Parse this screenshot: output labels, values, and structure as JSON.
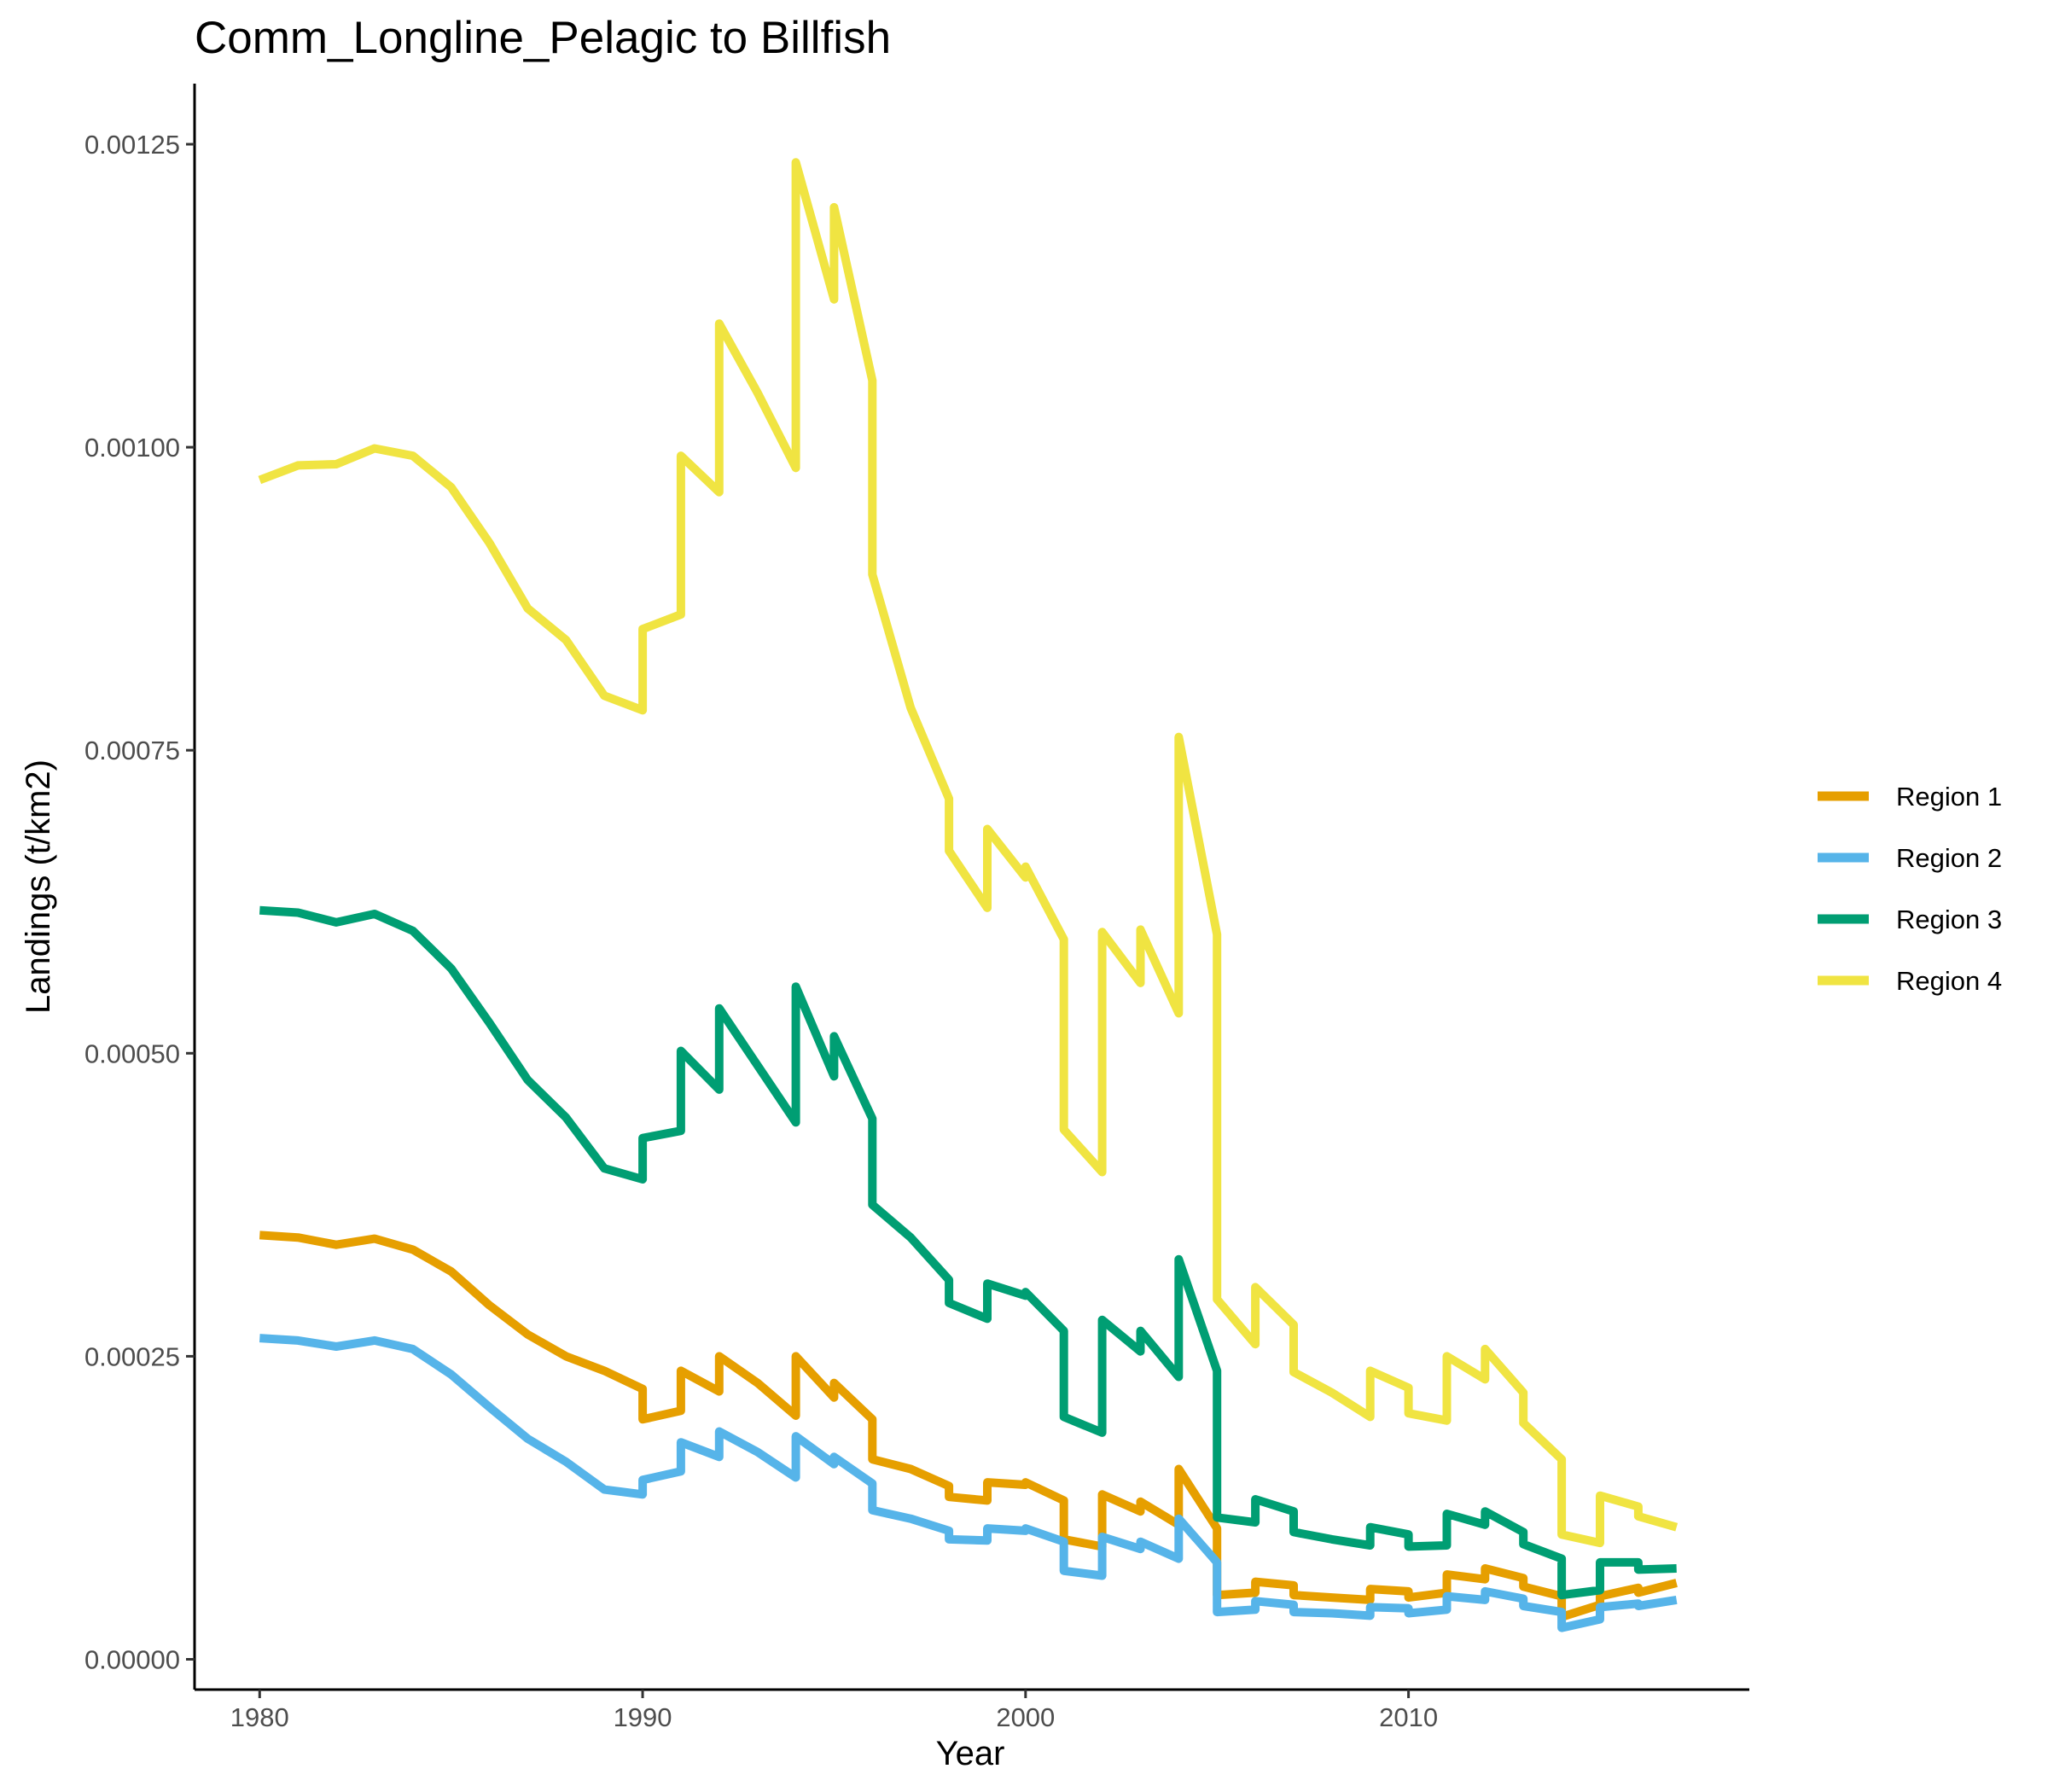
{
  "chart_data": {
    "type": "line",
    "title": "Comm_Longline_Pelagic to Billfish",
    "xlabel": "Year",
    "ylabel": "Landings (t/km2)",
    "xlim": [
      1978.3,
      2018.9
    ],
    "ylim": [
      -2.5e-05,
      0.0013
    ],
    "xticks": [
      1980,
      1990,
      2000,
      2010
    ],
    "xtick_labels": [
      "1980",
      "1990",
      "2000",
      "2010"
    ],
    "yticks": [
      0,
      0.00025,
      0.0005,
      0.00075,
      0.001,
      0.00125
    ],
    "ytick_labels": [
      "0.00000",
      "0.00025",
      "0.00050",
      "0.00075",
      "0.00100",
      "0.00125"
    ],
    "grid": false,
    "legend_position": "right",
    "series": [
      {
        "name": "Region 1",
        "color": "#E69F00",
        "points": [
          [
            1980,
            0.00035
          ],
          [
            1981,
            0.000348
          ],
          [
            1982,
            0.000342
          ],
          [
            1983,
            0.000347
          ],
          [
            1984,
            0.000338
          ],
          [
            1985,
            0.00032
          ],
          [
            1986,
            0.000292
          ],
          [
            1987,
            0.000268
          ],
          [
            1988,
            0.00025
          ],
          [
            1989,
            0.000238
          ],
          [
            1990,
            0.000223
          ],
          [
            1990,
            0.000198
          ],
          [
            1991,
            0.000205
          ],
          [
            1991,
            0.000238
          ],
          [
            1992,
            0.000221
          ],
          [
            1992,
            0.00025
          ],
          [
            1993,
            0.000228
          ],
          [
            1994,
            0.000201
          ],
          [
            1994,
            0.00025
          ],
          [
            1995,
            0.000216
          ],
          [
            1995,
            0.000228
          ],
          [
            1996,
            0.000198
          ],
          [
            1996,
            0.000165
          ],
          [
            1997,
            0.000157
          ],
          [
            1998,
            0.000143
          ],
          [
            1998,
            0.000134
          ],
          [
            1999,
            0.000131
          ],
          [
            1999,
            0.000146
          ],
          [
            2000,
            0.000144
          ],
          [
            2000,
            0.000146
          ],
          [
            2001,
            0.000131
          ],
          [
            2001,
            9.9e-05
          ],
          [
            2002,
            9.3e-05
          ],
          [
            2002,
            0.000136
          ],
          [
            2003,
            0.000122
          ],
          [
            2003,
            0.00013
          ],
          [
            2004,
            0.000111
          ],
          [
            2004,
            0.000157
          ],
          [
            2005,
            0.000108
          ],
          [
            2005,
            5.3e-05
          ],
          [
            2006,
            5.5e-05
          ],
          [
            2006,
            6.4e-05
          ],
          [
            2007,
            6.1e-05
          ],
          [
            2007,
            5.3e-05
          ],
          [
            2008,
            5.1e-05
          ],
          [
            2009,
            4.9e-05
          ],
          [
            2009,
            5.8e-05
          ],
          [
            2010,
            5.6e-05
          ],
          [
            2010,
            5.1e-05
          ],
          [
            2011,
            5.5e-05
          ],
          [
            2011,
            7e-05
          ],
          [
            2012,
            6.6e-05
          ],
          [
            2012,
            7.5e-05
          ],
          [
            2013,
            6.7e-05
          ],
          [
            2013,
            6e-05
          ],
          [
            2014,
            5.2e-05
          ],
          [
            2014,
            3.5e-05
          ],
          [
            2015,
            4.5e-05
          ],
          [
            2015,
            5.2e-05
          ],
          [
            2016,
            5.9e-05
          ],
          [
            2016,
            5.5e-05
          ],
          [
            2017,
            6.3e-05
          ]
        ]
      },
      {
        "name": "Region 2",
        "color": "#56B4E9",
        "points": [
          [
            1980,
            0.000265
          ],
          [
            1981,
            0.000263
          ],
          [
            1982,
            0.000258
          ],
          [
            1983,
            0.000263
          ],
          [
            1984,
            0.000256
          ],
          [
            1985,
            0.000235
          ],
          [
            1986,
            0.000208
          ],
          [
            1987,
            0.000182
          ],
          [
            1988,
            0.000163
          ],
          [
            1989,
            0.00014
          ],
          [
            1990,
            0.000136
          ],
          [
            1990,
            0.000148
          ],
          [
            1991,
            0.000155
          ],
          [
            1991,
            0.000179
          ],
          [
            1992,
            0.000167
          ],
          [
            1992,
            0.000188
          ],
          [
            1993,
            0.000171
          ],
          [
            1994,
            0.00015
          ],
          [
            1994,
            0.000184
          ],
          [
            1995,
            0.000161
          ],
          [
            1995,
            0.000167
          ],
          [
            1996,
            0.000145
          ],
          [
            1996,
            0.000123
          ],
          [
            1997,
            0.000116
          ],
          [
            1998,
            0.000106
          ],
          [
            1998,
            9.9e-05
          ],
          [
            1999,
            9.8e-05
          ],
          [
            1999,
            0.000108
          ],
          [
            2000,
            0.000106
          ],
          [
            2000,
            0.000108
          ],
          [
            2001,
            9.7e-05
          ],
          [
            2001,
            7.3e-05
          ],
          [
            2002,
            6.9e-05
          ],
          [
            2002,
            0.000101
          ],
          [
            2003,
            9.1e-05
          ],
          [
            2003,
            9.7e-05
          ],
          [
            2004,
            8.3e-05
          ],
          [
            2004,
            0.000116
          ],
          [
            2005,
            8e-05
          ],
          [
            2005,
            3.9e-05
          ],
          [
            2006,
            4.1e-05
          ],
          [
            2006,
            4.8e-05
          ],
          [
            2007,
            4.5e-05
          ],
          [
            2007,
            3.9e-05
          ],
          [
            2008,
            3.8e-05
          ],
          [
            2009,
            3.6e-05
          ],
          [
            2009,
            4.3e-05
          ],
          [
            2010,
            4.2e-05
          ],
          [
            2010,
            3.8e-05
          ],
          [
            2011,
            4.1e-05
          ],
          [
            2011,
            5.2e-05
          ],
          [
            2012,
            4.9e-05
          ],
          [
            2012,
            5.6e-05
          ],
          [
            2013,
            5e-05
          ],
          [
            2013,
            4.4e-05
          ],
          [
            2014,
            3.9e-05
          ],
          [
            2014,
            2.6e-05
          ],
          [
            2015,
            3.3e-05
          ],
          [
            2015,
            4.3e-05
          ],
          [
            2016,
            4.6e-05
          ],
          [
            2016,
            4.4e-05
          ],
          [
            2017,
            4.9e-05
          ]
        ]
      },
      {
        "name": "Region 3",
        "color": "#009E73",
        "points": [
          [
            1980,
            0.000618
          ],
          [
            1981,
            0.000616
          ],
          [
            1982,
            0.000608
          ],
          [
            1983,
            0.000615
          ],
          [
            1984,
            0.000601
          ],
          [
            1985,
            0.00057
          ],
          [
            1986,
            0.000525
          ],
          [
            1987,
            0.000478
          ],
          [
            1988,
            0.000447
          ],
          [
            1989,
            0.000405
          ],
          [
            1990,
            0.000396
          ],
          [
            1990,
            0.00043
          ],
          [
            1991,
            0.000436
          ],
          [
            1991,
            0.000502
          ],
          [
            1992,
            0.00047
          ],
          [
            1992,
            0.000537
          ],
          [
            1993,
            0.00049
          ],
          [
            1994,
            0.000443
          ],
          [
            1994,
            0.000555
          ],
          [
            1995,
            0.000481
          ],
          [
            1995,
            0.000514
          ],
          [
            1996,
            0.000446
          ],
          [
            1996,
            0.000375
          ],
          [
            1997,
            0.000348
          ],
          [
            1998,
            0.000313
          ],
          [
            1998,
            0.000294
          ],
          [
            1999,
            0.000281
          ],
          [
            1999,
            0.00031
          ],
          [
            2000,
            0.0003
          ],
          [
            2000,
            0.000303
          ],
          [
            2001,
            0.000271
          ],
          [
            2001,
            0.0002
          ],
          [
            2002,
            0.000187
          ],
          [
            2002,
            0.00028
          ],
          [
            2003,
            0.000254
          ],
          [
            2003,
            0.000271
          ],
          [
            2004,
            0.000233
          ],
          [
            2004,
            0.00033
          ],
          [
            2005,
            0.000238
          ],
          [
            2005,
            0.000117
          ],
          [
            2006,
            0.000113
          ],
          [
            2006,
            0.000132
          ],
          [
            2007,
            0.000122
          ],
          [
            2007,
            0.000105
          ],
          [
            2008,
            9.9e-05
          ],
          [
            2009,
            9.4e-05
          ],
          [
            2009,
            0.000109
          ],
          [
            2010,
            0.000103
          ],
          [
            2010,
            9.3e-05
          ],
          [
            2011,
            9.4e-05
          ],
          [
            2011,
            0.00012
          ],
          [
            2012,
            0.000111
          ],
          [
            2012,
            0.000122
          ],
          [
            2013,
            0.000105
          ],
          [
            2013,
            9.5e-05
          ],
          [
            2014,
            8.3e-05
          ],
          [
            2014,
            5.3e-05
          ],
          [
            2015,
            5.7e-05
          ],
          [
            2015,
            8e-05
          ],
          [
            2016,
            8e-05
          ],
          [
            2016,
            7.4e-05
          ],
          [
            2017,
            7.5e-05
          ]
        ]
      },
      {
        "name": "Region 4",
        "color": "#F0E442",
        "points": [
          [
            1980,
            0.000973
          ],
          [
            1981,
            0.000985
          ],
          [
            1982,
            0.000986
          ],
          [
            1983,
            0.000999
          ],
          [
            1984,
            0.000993
          ],
          [
            1985,
            0.000967
          ],
          [
            1986,
            0.000921
          ],
          [
            1987,
            0.000867
          ],
          [
            1988,
            0.000841
          ],
          [
            1989,
            0.000795
          ],
          [
            1990,
            0.000783
          ],
          [
            1990,
            0.00085
          ],
          [
            1991,
            0.000862
          ],
          [
            1991,
            0.000993
          ],
          [
            1992,
            0.000963
          ],
          [
            1992,
            0.001102
          ],
          [
            1993,
            0.001045
          ],
          [
            1994,
            0.000983
          ],
          [
            1994,
            0.001235
          ],
          [
            1995,
            0.001122
          ],
          [
            1995,
            0.001198
          ],
          [
            1996,
            0.001055
          ],
          [
            1996,
            0.000895
          ],
          [
            1997,
            0.000785
          ],
          [
            1998,
            0.00071
          ],
          [
            1998,
            0.000667
          ],
          [
            1999,
            0.00062
          ],
          [
            1999,
            0.000685
          ],
          [
            2000,
            0.000645
          ],
          [
            2000,
            0.000654
          ],
          [
            2001,
            0.000594
          ],
          [
            2001,
            0.000437
          ],
          [
            2002,
            0.000402
          ],
          [
            2002,
            0.0006
          ],
          [
            2003,
            0.000558
          ],
          [
            2003,
            0.000602
          ],
          [
            2004,
            0.000533
          ],
          [
            2004,
            0.000761
          ],
          [
            2005,
            0.000598
          ],
          [
            2005,
            0.000297
          ],
          [
            2006,
            0.00026
          ],
          [
            2006,
            0.000307
          ],
          [
            2007,
            0.000276
          ],
          [
            2007,
            0.000237
          ],
          [
            2008,
            0.00022
          ],
          [
            2009,
            0.0002
          ],
          [
            2009,
            0.000238
          ],
          [
            2010,
            0.000224
          ],
          [
            2010,
            0.000203
          ],
          [
            2011,
            0.000197
          ],
          [
            2011,
            0.00025
          ],
          [
            2012,
            0.000231
          ],
          [
            2012,
            0.000256
          ],
          [
            2013,
            0.00022
          ],
          [
            2013,
            0.000195
          ],
          [
            2014,
            0.000165
          ],
          [
            2014,
            0.000103
          ],
          [
            2015,
            9.6e-05
          ],
          [
            2015,
            0.000135
          ],
          [
            2016,
            0.000126
          ],
          [
            2016,
            0.000118
          ],
          [
            2017,
            0.000109
          ]
        ]
      }
    ]
  }
}
